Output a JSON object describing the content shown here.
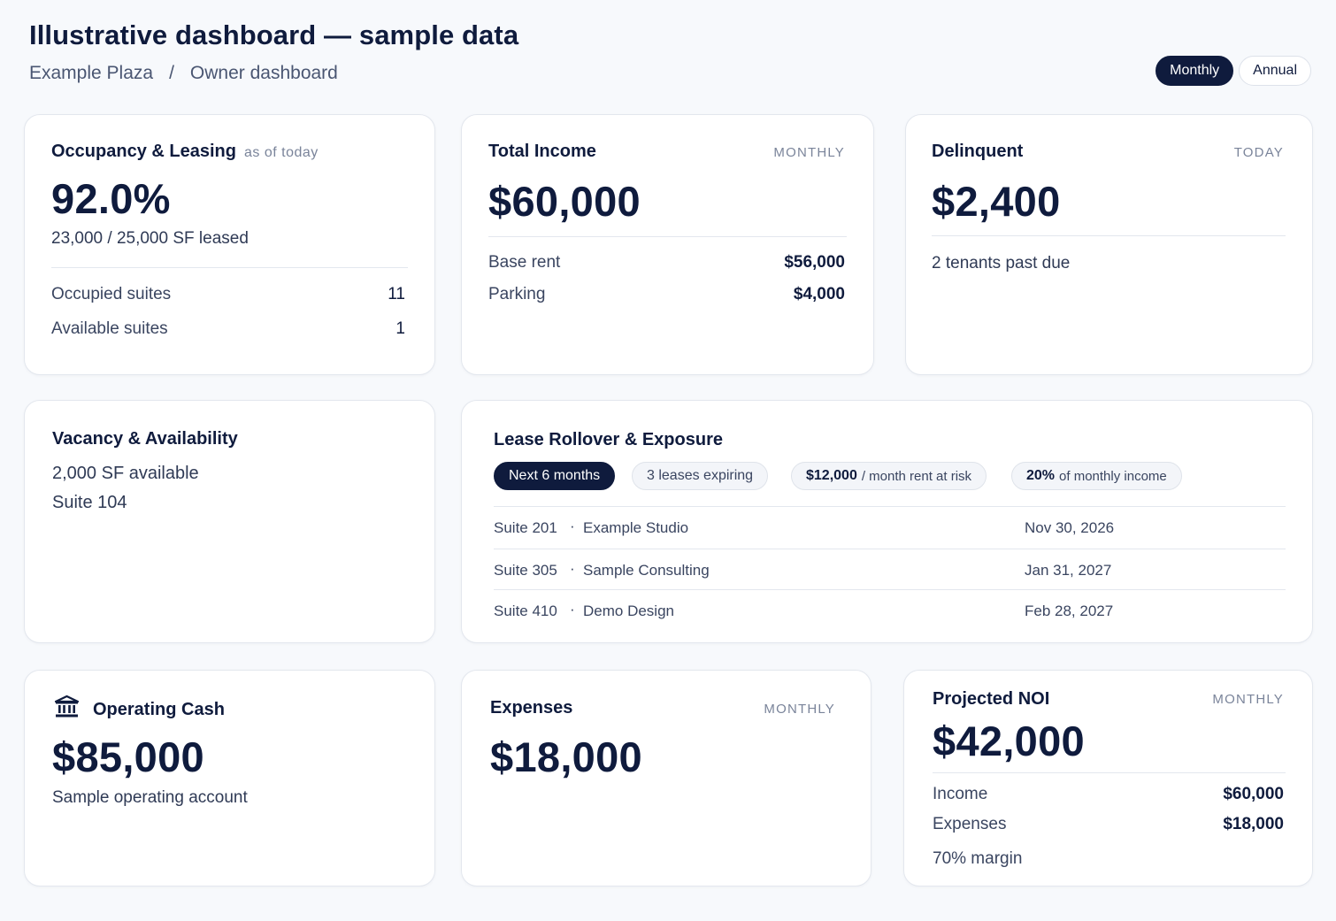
{
  "header": {
    "title": "Illustrative dashboard — sample data",
    "breadcrumb": [
      "Example Plaza",
      "/",
      "Owner dashboard"
    ],
    "toggle": [
      "Monthly",
      "Annual"
    ],
    "toggle_active": "Monthly"
  },
  "occupancy": {
    "title": "Occupancy & Leasing",
    "tag": "as of today",
    "value": "92.0%",
    "occupancy_fraction": 0.92,
    "sub": "23,000 / 25,000 SF leased",
    "rows": [
      {
        "label": "Occupied suites",
        "value": "11"
      },
      {
        "label": "Available suites",
        "value": "1"
      }
    ]
  },
  "income": {
    "title": "Total Income",
    "tag": "MONTHLY",
    "value": "$60,000",
    "rows": [
      {
        "label": "Base rent",
        "value": "$56,000"
      },
      {
        "label": "Parking",
        "value": "$4,000"
      }
    ]
  },
  "delinquent": {
    "title": "Delinquent",
    "tag": "TODAY",
    "value": "$2,400",
    "sub": "2 tenants past due"
  },
  "vacancy": {
    "title": "Vacancy & Availability",
    "line1": "2,000 SF available",
    "line2": "Suite 104"
  },
  "rollover": {
    "title": "Lease Rollover & Exposure",
    "pills": {
      "period": "Next 6 months",
      "expiring": "3 leases expiring",
      "risk_value": "$12,000",
      "risk_label": "/ month rent at risk",
      "pct_value": "20%",
      "pct_label": "of monthly income"
    },
    "leases": [
      {
        "suite": "Suite 201",
        "sep": "·",
        "tenant": "Example Studio",
        "date": "Nov 30, 2026"
      },
      {
        "suite": "Suite 305",
        "sep": "·",
        "tenant": "Sample Consulting",
        "date": "Jan 31, 2027"
      },
      {
        "suite": "Suite 410",
        "sep": "·",
        "tenant": "Demo Design",
        "date": "Feb 28, 2027"
      }
    ]
  },
  "cash": {
    "title": "Operating Cash",
    "icon": "bank-icon",
    "value": "$85,000",
    "sub": "Sample operating account"
  },
  "expenses": {
    "title": "Expenses",
    "tag": "MONTHLY",
    "value": "$18,000"
  },
  "noi": {
    "title": "Projected NOI",
    "tag": "MONTHLY",
    "value": "$42,000",
    "rows": [
      {
        "label": "Income",
        "value": "$60,000"
      },
      {
        "label": "Expenses",
        "value": "$18,000"
      }
    ],
    "margin": "70% margin"
  },
  "colors": {
    "navy": "#0f1b3d",
    "background": "#f7f9fc",
    "card_border": "#e3e7ee",
    "muted": "#7a849a"
  }
}
